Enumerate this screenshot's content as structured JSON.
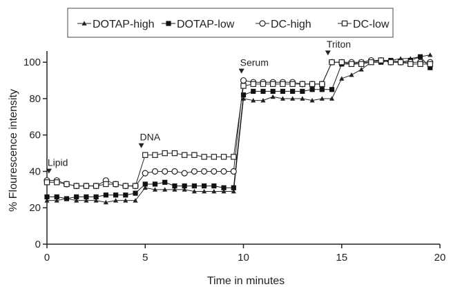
{
  "chart_data": {
    "type": "line",
    "xlabel": "Time in minutes",
    "ylabel": "% Flourescence intensity",
    "xlim": [
      0,
      20
    ],
    "ylim": [
      0,
      105
    ],
    "xticks": [
      0,
      5,
      10,
      15,
      20
    ],
    "yticks": [
      0,
      20,
      40,
      60,
      80,
      100
    ],
    "grid": false,
    "legend_position": "top",
    "annotations": [
      {
        "text": "Lipid",
        "x": 0.1
      },
      {
        "text": "DNA",
        "x": 4.8
      },
      {
        "text": "Serum",
        "x": 9.9
      },
      {
        "text": "Triton",
        "x": 14.3
      }
    ],
    "series": [
      {
        "name": "DOTAP-high",
        "marker": "triangle",
        "color": "#222222",
        "x": [
          0,
          0.5,
          1,
          1.5,
          2,
          2.5,
          3,
          3.5,
          4,
          4.5,
          5,
          5.5,
          6,
          6.5,
          7,
          7.5,
          8,
          8.5,
          9,
          9.5,
          10,
          10.5,
          11,
          11.5,
          12,
          12.5,
          13,
          13.5,
          14,
          14.5,
          15,
          15.5,
          16,
          16.5,
          17,
          17.5,
          18,
          18.5,
          19,
          19.5
        ],
        "values": [
          24,
          24,
          25,
          24,
          24,
          24,
          23,
          24,
          24,
          24,
          31,
          30,
          30,
          30,
          30,
          29,
          29,
          29,
          29,
          29,
          80,
          79,
          79,
          81,
          80,
          80,
          80,
          79,
          80,
          80,
          91,
          93,
          96,
          100,
          101,
          101,
          102,
          102,
          103,
          104
        ]
      },
      {
        "name": "DOTAP-low",
        "marker": "square",
        "color": "#111111",
        "x": [
          0,
          0.5,
          1,
          1.5,
          2,
          2.5,
          3,
          3.5,
          4,
          4.5,
          5,
          5.5,
          6,
          6.5,
          7,
          7.5,
          8,
          8.5,
          9,
          9.5,
          10,
          10.5,
          11,
          11.5,
          12,
          12.5,
          13,
          13.5,
          14,
          14.5,
          15,
          15.5,
          16,
          16.5,
          17,
          17.5,
          18,
          18.5,
          19,
          19.5
        ],
        "values": [
          26,
          26,
          25,
          26,
          26,
          26,
          27,
          27,
          27,
          28,
          33,
          33,
          34,
          32,
          32,
          32,
          32,
          32,
          31,
          31,
          82,
          84,
          84,
          84,
          84,
          84,
          84,
          85,
          85,
          85,
          99,
          99,
          100,
          100,
          100,
          101,
          100,
          101,
          103,
          97
        ]
      },
      {
        "name": "DC-high",
        "marker": "circle",
        "color": "#222222",
        "x": [
          0,
          0.5,
          1,
          1.5,
          2,
          2.5,
          3,
          3.5,
          4,
          4.5,
          5,
          5.5,
          6,
          6.5,
          7,
          7.5,
          8,
          8.5,
          9,
          9.5,
          10,
          10.5,
          11,
          11.5,
          12,
          12.5,
          13,
          13.5,
          14,
          14.5,
          15,
          15.5,
          16,
          16.5,
          17,
          17.5,
          18,
          18.5,
          19,
          19.5
        ],
        "values": [
          35,
          35,
          33,
          32,
          32,
          32,
          35,
          33,
          32,
          32,
          39,
          40,
          40,
          40,
          39,
          40,
          40,
          40,
          40,
          40,
          90,
          89,
          89,
          89,
          89,
          89,
          88,
          88,
          88,
          100,
          100,
          100,
          100,
          101,
          101,
          100,
          100,
          100,
          100,
          100
        ]
      },
      {
        "name": "DC-low",
        "marker": "open-square",
        "color": "#222222",
        "x": [
          0,
          0.5,
          1,
          1.5,
          2,
          2.5,
          3,
          3.5,
          4,
          4.5,
          5,
          5.5,
          6,
          6.5,
          7,
          7.5,
          8,
          8.5,
          9,
          9.5,
          10,
          10.5,
          11,
          11.5,
          12,
          12.5,
          13,
          13.5,
          14,
          14.5,
          15,
          15.5,
          16,
          16.5,
          17,
          17.5,
          18,
          18.5,
          19,
          19.5
        ],
        "values": [
          34,
          34,
          33,
          32,
          32,
          32,
          33,
          33,
          32,
          32,
          49,
          49,
          50,
          50,
          49,
          49,
          48,
          48,
          48,
          48,
          87,
          88,
          88,
          88,
          88,
          88,
          88,
          88,
          88,
          100,
          100,
          99,
          99,
          100,
          101,
          100,
          100,
          99,
          99,
          99
        ]
      }
    ]
  }
}
